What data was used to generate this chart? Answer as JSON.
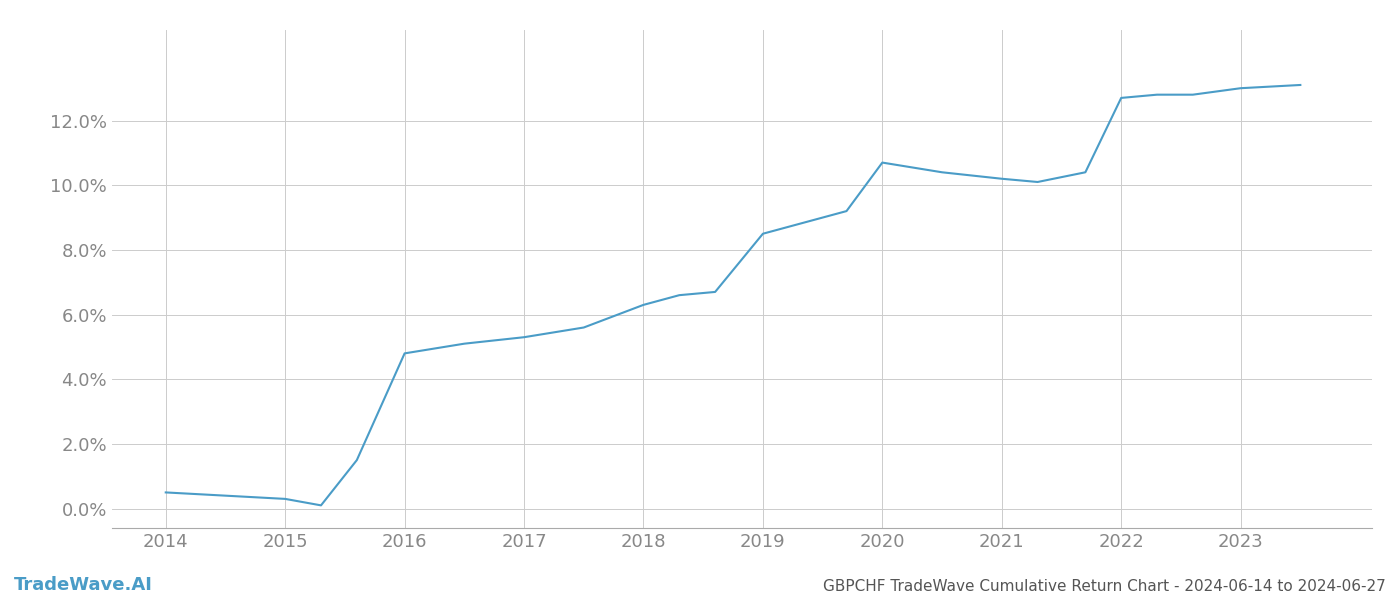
{
  "x_years": [
    2014.0,
    2014.5,
    2015.0,
    2015.3,
    2015.6,
    2016.0,
    2016.5,
    2017.0,
    2017.5,
    2018.0,
    2018.3,
    2018.6,
    2019.0,
    2019.3,
    2019.7,
    2020.0,
    2020.5,
    2021.0,
    2021.3,
    2021.7,
    2022.0,
    2022.3,
    2022.6,
    2023.0,
    2023.5
  ],
  "y_values": [
    0.005,
    0.004,
    0.003,
    0.001,
    0.015,
    0.048,
    0.051,
    0.053,
    0.056,
    0.063,
    0.066,
    0.067,
    0.085,
    0.088,
    0.092,
    0.107,
    0.104,
    0.102,
    0.101,
    0.104,
    0.127,
    0.128,
    0.128,
    0.13,
    0.131
  ],
  "line_color": "#4a9cc7",
  "line_width": 1.5,
  "background_color": "#ffffff",
  "grid_color": "#cccccc",
  "title": "GBPCHF TradeWave Cumulative Return Chart - 2024-06-14 to 2024-06-27",
  "watermark": "TradeWave.AI",
  "xlim": [
    2013.55,
    2024.1
  ],
  "ylim": [
    -0.006,
    0.148
  ],
  "yticks": [
    0.0,
    0.02,
    0.04,
    0.06,
    0.08,
    0.1,
    0.12
  ],
  "xticks": [
    2014,
    2015,
    2016,
    2017,
    2018,
    2019,
    2020,
    2021,
    2022,
    2023
  ],
  "tick_label_color": "#888888",
  "title_color": "#555555",
  "watermark_color": "#4a9cc7",
  "title_fontsize": 11,
  "tick_fontsize": 13,
  "watermark_fontsize": 13
}
